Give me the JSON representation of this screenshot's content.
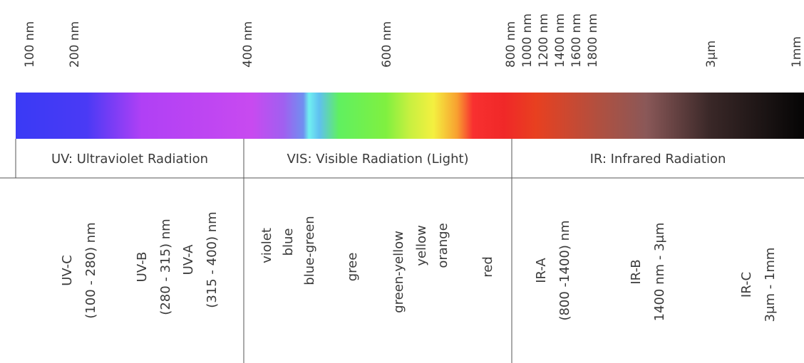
{
  "scale": {
    "labels": [
      "100 nm",
      "200 nm",
      "400 nm",
      "600 nm",
      "800 nm",
      "1000 nm",
      "1200 nm",
      "1400 nm",
      "1600 nm",
      "1800 nm",
      "3μm",
      "1mm"
    ]
  },
  "table": {
    "headers": [
      "UV: Ultraviolet Radiation",
      "VIS: Visible Radiation (Light)",
      "IR: Infrared Radiation"
    ],
    "columns": [
      {
        "items": [
          {
            "lines": [
              "UV-C",
              "(100 - 280) nm"
            ]
          },
          {
            "lines": [
              "UV-B",
              "(280 - 315) nm"
            ]
          },
          {
            "lines": [
              "UV-A",
              "(315 - 400) nm"
            ]
          }
        ]
      },
      {
        "items": [
          {
            "lines": [
              "violet"
            ]
          },
          {
            "lines": [
              "blue"
            ]
          },
          {
            "lines": [
              "blue-green"
            ]
          },
          {
            "lines": [
              "gree"
            ]
          },
          {
            "lines": [
              "green-yellow"
            ]
          },
          {
            "lines": [
              "yellow"
            ]
          },
          {
            "lines": [
              "orange"
            ]
          },
          {
            "lines": [
              "red"
            ]
          }
        ]
      },
      {
        "items": [
          {
            "lines": [
              "IR-A",
              "(800 -1400) nm"
            ]
          },
          {
            "lines": [
              "IR-B",
              "1400 nm - 3μm"
            ]
          },
          {
            "lines": [
              "IR-C",
              "3μm - 1mm"
            ]
          }
        ]
      }
    ]
  }
}
